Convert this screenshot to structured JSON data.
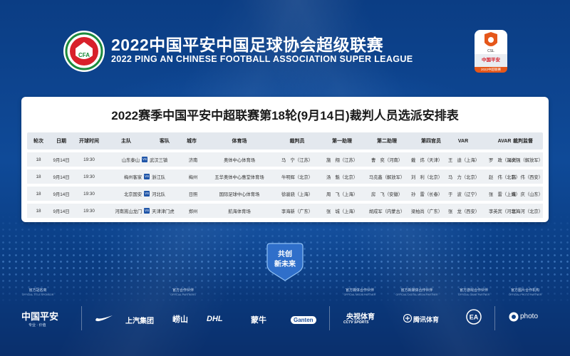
{
  "header": {
    "title_cn": "2022中国平安中国足球协会超级联赛",
    "title_en": "2022 PING AN CHINESE FOOTBALL ASSOCIATION SUPER LEAGUE",
    "cfa_logo_text": "CFA",
    "badge_text_top": "CSL",
    "badge_text_mid": "中国平安",
    "badge_text_bot": "2022中超联赛"
  },
  "table": {
    "title": "2022赛季中国平安中超联赛第18轮(9月14日)裁判人员选派安排表",
    "columns": [
      "轮次",
      "日期",
      "开球时间",
      "主队",
      "客队",
      "城市",
      "体育场",
      "裁判员",
      "第一助理",
      "第二助理",
      "第四官员",
      "VAR",
      "AVAR",
      "裁判监督"
    ],
    "vs_label": "VS",
    "rows": [
      {
        "round": "18",
        "date": "9月14日",
        "time": "19:30",
        "home": "山东泰山",
        "away": "武汉三镇",
        "city": "济南",
        "stadium": "奥体中心体育场",
        "referee": "马　宁（江苏）",
        "ar1": "施　翔（江苏）",
        "ar2": "曹　奕（河南）",
        "fourth": "戴　炜（天津）",
        "var": "王　迪（上海）",
        "avar": "罗　政（深圳）",
        "supervisor": "冯文强（解放军）"
      },
      {
        "round": "18",
        "date": "9月14日",
        "time": "19:30",
        "home": "梅州客家",
        "away": "浙江队",
        "city": "梅州",
        "stadium": "五华奥体中心惠堂体育场",
        "referee": "牛明辉（北京）",
        "ar1": "汤　魁（北京）",
        "ar2": "马克鑫（解放军）",
        "fourth": "刘　利（北京）",
        "var": "马　力（北京）",
        "avar": "赵　伟（北京）",
        "supervisor": "韩　伟（西安）"
      },
      {
        "round": "18",
        "date": "9月14日",
        "time": "19:30",
        "home": "北京国安",
        "away": "河北队",
        "city": "日照",
        "stadium": "国际足球中心体育场",
        "referee": "徐骏骁（上海）",
        "ar1": "周　飞（上海）",
        "ar2": "房　飞（安徽）",
        "fourth": "孙　雷（长春）",
        "var": "于　波（辽宁）",
        "avar": "张　雷（上海）",
        "supervisor": "姚　庆（山东）"
      },
      {
        "round": "18",
        "date": "9月14日",
        "time": "19:30",
        "home": "河南嵩山龙门",
        "away": "天津津门虎",
        "city": "郑州",
        "stadium": "航海体育场",
        "referee": "李海新（广东）",
        "ar1": "张　城（上海）",
        "ar2": "胡成军（内蒙古）",
        "fourth": "梁柏尚（广东）",
        "var": "张　龙（西安）",
        "avar": "李英宾（河北）",
        "supervisor": "李海河（北京）"
      }
    ]
  },
  "emblem": {
    "line1": "共创",
    "line2": "新未来"
  },
  "sponsors": [
    {
      "label": "官方冠名商",
      "sub": "OFFICIAL TITLE SPONSOR",
      "logo": "中国平安",
      "logo_sub": "专业 · 价值"
    },
    {
      "label": "官方合作伙伴",
      "sub": "OFFICIAL PARTNERS",
      "logos": [
        "上汽集团",
        "崂山",
        "DHL",
        "蒙牛",
        "Ganten"
      ]
    },
    {
      "label": "官方媒体合作伙伴",
      "sub": "OFFICIAL MEDIA PARTNER",
      "logo": "央视体育",
      "logo_sub": "CCTV SPORTS"
    },
    {
      "label": "官方新媒体合作伙伴",
      "sub": "OFFICIAL DIGITAL MEDIA PARTNER",
      "logo": "腾讯体育"
    },
    {
      "label": "官方游戏合作伙伴",
      "sub": "OFFICIAL GAME PARTNER",
      "logo": "EA"
    },
    {
      "label": "官方图片合作机构",
      "sub": "OFFICIAL PHOTO PARTNER",
      "logo": "photo"
    }
  ],
  "colors": {
    "bg": "#0c3f86",
    "accent": "#1f55a8",
    "red": "#d8202b",
    "orange": "#e5571a"
  }
}
